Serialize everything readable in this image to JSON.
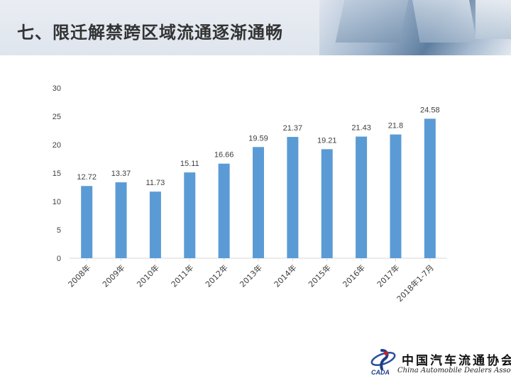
{
  "slide": {
    "title": "七、限迁解禁跨区域流通逐渐通畅"
  },
  "logo": {
    "cn_text": "中国汽车流通协会",
    "en_text": "China Automobile Dealers Association",
    "mark_text": "CADA"
  },
  "colors": {
    "bar": "#5b9bd5",
    "axis": "#d9d9d9",
    "label": "#404040"
  },
  "chart_data": {
    "type": "bar",
    "categories": [
      "2008年",
      "2009年",
      "2010年",
      "2011年",
      "2012年",
      "2013年",
      "2014年",
      "2015年",
      "2016年",
      "2017年",
      "2018年1-7月"
    ],
    "values": [
      12.72,
      13.37,
      11.73,
      15.11,
      16.66,
      19.59,
      21.37,
      19.21,
      21.43,
      21.8,
      24.58
    ],
    "data_labels": [
      "12.72",
      "13.37",
      "11.73",
      "15.11",
      "16.66",
      "19.59",
      "21.37",
      "19.21",
      "21.43",
      "21.8",
      "24.58"
    ],
    "yticks": [
      0,
      5,
      10,
      15,
      20,
      25,
      30
    ],
    "ylim": [
      0,
      30
    ],
    "grid": false,
    "legend": "none"
  }
}
